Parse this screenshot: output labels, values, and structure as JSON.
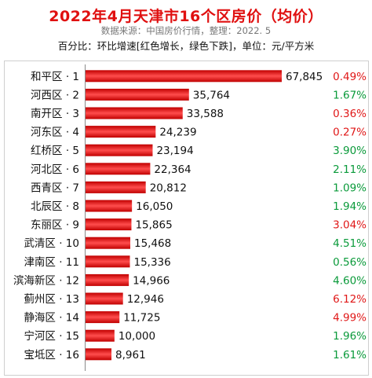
{
  "title": "2022年4月天津市16个区房价（均价）",
  "source": "数据来源：中国房价行情，整理：2022. 5",
  "note": "百分比：环比增速[红色增长，绿色下跌]，单位：元/平方米",
  "colors": {
    "bar_dark": "#c00000",
    "bar_light": "#ff4d4d",
    "increase": "#e01818",
    "decrease": "#0a9a3a"
  },
  "chart_data": {
    "type": "bar",
    "orientation": "horizontal",
    "categories": [
      "和平区 · 1",
      "河西区 · 2",
      "南开区 · 3",
      "河东区 · 4",
      "红桥区 · 5",
      "河北区 · 6",
      "西青区 · 7",
      "北辰区 · 8",
      "东丽区 · 9",
      "武清区 · 10",
      "津南区 · 11",
      "滨海新区 · 12",
      "蓟州区 · 13",
      "静海区 · 14",
      "宁河区 · 15",
      "宝坻区 · 16"
    ],
    "values": [
      67845,
      35764,
      33588,
      24239,
      23194,
      22364,
      20812,
      16050,
      15865,
      15468,
      15336,
      14966,
      12946,
      11725,
      10000,
      8961
    ],
    "value_labels": [
      "67,845",
      "35,764",
      "33,588",
      "24,239",
      "23,194",
      "22,364",
      "20,812",
      "16,050",
      "15,865",
      "15,468",
      "15,336",
      "14,966",
      "12,946",
      "11,725",
      "10,000",
      "8,961"
    ],
    "change_labels": [
      "0.49%",
      "1.67%",
      "0.36%",
      "0.27%",
      "3.90%",
      "2.11%",
      "1.09%",
      "1.94%",
      "3.04%",
      "4.51%",
      "0.56%",
      "4.60%",
      "6.12%",
      "4.99%",
      "1.96%",
      "1.61%"
    ],
    "change_direction": [
      "up",
      "down",
      "up",
      "up",
      "down",
      "down",
      "down",
      "down",
      "up",
      "down",
      "down",
      "down",
      "up",
      "up",
      "down",
      "down"
    ],
    "xlim": [
      0,
      67845
    ],
    "grid": false
  }
}
